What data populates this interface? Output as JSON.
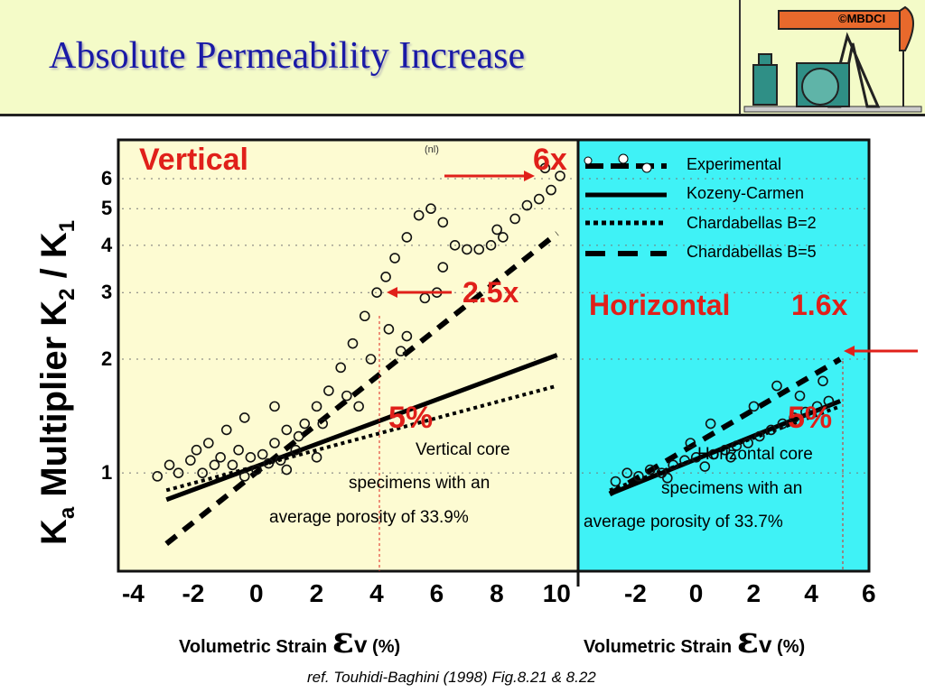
{
  "header": {
    "title": "Absolute Permeability Increase",
    "logo_text": "©MBDCI",
    "colors": {
      "background": "#f4fbc8",
      "title": "#1a1aa6",
      "logo": "#e8692c"
    }
  },
  "labels": {
    "y_axis_main": "K",
    "y_axis_sub_a": "a",
    "y_axis_middle": " Multiplier  K",
    "y_axis_sub_2": "2",
    "y_axis_slash": " / K",
    "y_axis_sub_1": "1",
    "x_axis_text": "Volumetric Strain",
    "x_axis_symbol": "ε",
    "x_axis_symbol_sub": "v",
    "x_axis_unit": "(%)",
    "vertical_title": "Vertical",
    "horizontal_title": "Horizontal",
    "vertical_total": "6x",
    "vertical_mid": "2.5x",
    "horizontal_total": "1.6x",
    "strain_marker_left": "5%",
    "strain_marker_right": "5%",
    "caption_left": [
      "Vertical core",
      "specimens with an",
      "average porosity of 33.9%"
    ],
    "caption_right": [
      "Horizontal core",
      "specimens with an",
      "average porosity of 33.7%"
    ],
    "reference": "ref.    Touhidi-Baghini (1998) Fig.8.21 & 8.22",
    "corner_mark": "(nl)"
  },
  "chart_data": [
    {
      "type": "scatter",
      "title": "Vertical",
      "panel_color": "#fdfbd2",
      "xlabel": "Volumetric Strain εv (%)",
      "ylabel": "Ka Multiplier K2 / K1",
      "x_ticks": [
        -4,
        -2,
        0,
        2,
        4,
        6,
        8,
        10
      ],
      "y_ticks": [
        1,
        2,
        3,
        4,
        5,
        6
      ],
      "y_scale": "log",
      "xlim": [
        -4.6,
        10.7
      ],
      "ylim": [
        0.55,
        7.6
      ],
      "grid": "dotted horizontal",
      "legend": [
        "Experimental",
        "Kozeny-Carmen",
        "Chardabellas B=2",
        "Chardabellas B=5"
      ],
      "legend_position": "top-right",
      "series": [
        {
          "name": "Kozeny-Carmen",
          "style": "solid",
          "x": [
            -3.0,
            10.0
          ],
          "y": [
            0.85,
            2.05
          ]
        },
        {
          "name": "Chardabellas B=2",
          "style": "dotted",
          "x": [
            -3.0,
            10.0
          ],
          "y": [
            0.9,
            1.7
          ]
        },
        {
          "name": "Chardabellas B=5",
          "style": "dashed",
          "x": [
            -3.0,
            10.0
          ],
          "y": [
            0.65,
            4.3
          ]
        },
        {
          "name": "Experimental",
          "style": "circles",
          "x": [
            -3.3,
            -2.9,
            -2.6,
            -2.2,
            -2.0,
            -1.8,
            -1.6,
            -1.4,
            -1.2,
            -1.0,
            -0.8,
            -0.6,
            -0.4,
            -0.2,
            0.0,
            0.2,
            0.4,
            0.6,
            0.8,
            1.0,
            1.3,
            1.6,
            2.0,
            2.4,
            2.8,
            3.2,
            3.6,
            4.0,
            4.3,
            4.6,
            5.0,
            5.4,
            5.8,
            6.2,
            6.6,
            7.0,
            7.4,
            7.8,
            8.2,
            8.6,
            9.0,
            9.4,
            9.8,
            10.1,
            -0.4,
            0.6,
            1.4,
            2.2,
            3.0,
            3.8,
            4.4,
            5.0,
            5.6,
            6.2,
            1.0,
            2.0,
            3.4,
            4.8,
            6.0,
            8.0,
            9.6
          ],
          "y": [
            0.98,
            1.05,
            1.0,
            1.08,
            1.15,
            1.0,
            1.2,
            1.05,
            1.1,
            1.3,
            1.05,
            1.15,
            0.98,
            1.1,
            1.02,
            1.12,
            1.06,
            1.2,
            1.08,
            1.3,
            1.15,
            1.35,
            1.5,
            1.65,
            1.9,
            2.2,
            2.6,
            3.0,
            3.3,
            3.7,
            4.2,
            4.8,
            5.0,
            4.6,
            4.0,
            3.9,
            3.9,
            4.0,
            4.2,
            4.7,
            5.1,
            5.3,
            5.6,
            6.1,
            1.4,
            1.5,
            1.25,
            1.35,
            1.6,
            2.0,
            2.4,
            2.3,
            2.9,
            3.5,
            1.02,
            1.1,
            1.5,
            2.1,
            3.0,
            4.4,
            6.4
          ]
        }
      ]
    },
    {
      "type": "scatter",
      "title": "Horizontal",
      "panel_color": "#3ff2f6",
      "xlabel": "Volumetric Strain εv (%)",
      "ylabel": "Ka Multiplier K2 / K1",
      "x_ticks": [
        -2,
        0,
        2,
        4,
        6
      ],
      "y_scale": "log",
      "xlim": [
        -4.1,
        6.0
      ],
      "ylim": [
        0.55,
        7.6
      ],
      "grid": "dotted horizontal",
      "series": [
        {
          "name": "Kozeny-Carmen",
          "style": "solid",
          "x": [
            -3.0,
            5.0
          ],
          "y": [
            0.88,
            1.55
          ]
        },
        {
          "name": "Chardabellas B=2",
          "style": "dotted",
          "x": [
            -3.0,
            5.0
          ],
          "y": [
            0.9,
            1.5
          ]
        },
        {
          "name": "Chardabellas B=5",
          "style": "dashed",
          "x": [
            -3.0,
            5.0
          ],
          "y": [
            0.88,
            2.0
          ]
        },
        {
          "name": "Experimental",
          "style": "circles",
          "x": [
            -2.8,
            -2.4,
            -2.0,
            -1.6,
            -1.2,
            -0.8,
            -0.4,
            0.0,
            0.3,
            0.6,
            1.0,
            1.4,
            1.8,
            2.2,
            2.6,
            3.0,
            3.4,
            3.8,
            4.2,
            4.6,
            -1.0,
            -0.2,
            0.5,
            1.2,
            2.0,
            2.8,
            3.6,
            4.4
          ],
          "y": [
            0.95,
            1.0,
            0.98,
            1.02,
            1.0,
            1.05,
            1.08,
            1.1,
            1.04,
            1.12,
            1.15,
            1.18,
            1.2,
            1.25,
            1.3,
            1.35,
            1.4,
            1.45,
            1.5,
            1.55,
            0.97,
            1.2,
            1.35,
            1.1,
            1.5,
            1.7,
            1.6,
            1.75
          ]
        }
      ]
    }
  ]
}
